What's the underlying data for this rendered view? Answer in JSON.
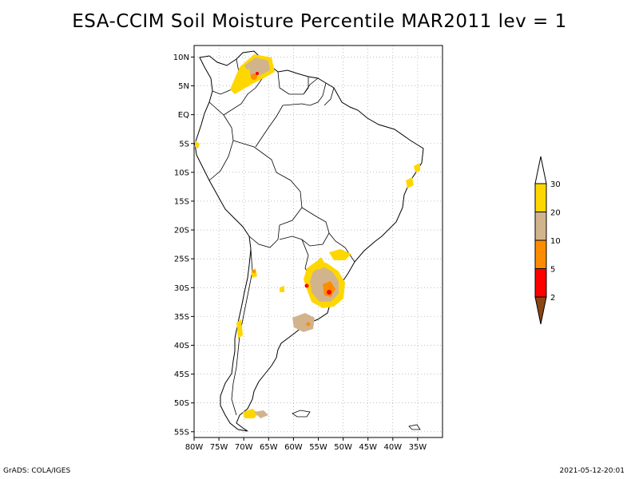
{
  "title": "ESA-CCIM Soil Moisture Percentile MAR2011 lev = 1",
  "footer": {
    "left": "GrADS: COLA/IGES",
    "right": "2021-05-12-20:01"
  },
  "map": {
    "lon_range": [
      -80,
      -30
    ],
    "lat_range": [
      -56,
      12
    ],
    "lat_ticks": [
      {
        "value": 10,
        "label": "10N"
      },
      {
        "value": 5,
        "label": "5N"
      },
      {
        "value": 0,
        "label": "EQ"
      },
      {
        "value": -5,
        "label": "5S"
      },
      {
        "value": -10,
        "label": "10S"
      },
      {
        "value": -15,
        "label": "15S"
      },
      {
        "value": -20,
        "label": "20S"
      },
      {
        "value": -25,
        "label": "25S"
      },
      {
        "value": -30,
        "label": "30S"
      },
      {
        "value": -35,
        "label": "35S"
      },
      {
        "value": -40,
        "label": "40S"
      },
      {
        "value": -45,
        "label": "45S"
      },
      {
        "value": -50,
        "label": "50S"
      },
      {
        "value": -55,
        "label": "55S"
      }
    ],
    "lon_ticks": [
      {
        "value": -80,
        "label": "80W"
      },
      {
        "value": -75,
        "label": "75W"
      },
      {
        "value": -70,
        "label": "70W"
      },
      {
        "value": -65,
        "label": "65W"
      },
      {
        "value": -60,
        "label": "60W"
      },
      {
        "value": -55,
        "label": "55W"
      },
      {
        "value": -50,
        "label": "50W"
      },
      {
        "value": -45,
        "label": "45W"
      },
      {
        "value": -40,
        "label": "40W"
      },
      {
        "value": -35,
        "label": "35W"
      }
    ],
    "grid": true
  },
  "legend": {
    "bins": [
      {
        "color": "#ffffff",
        "label": "30"
      },
      {
        "color": "#ffd700",
        "label": "20"
      },
      {
        "color": "#d2b48c",
        "label": "10"
      },
      {
        "color": "#ff8c00",
        "label": "5"
      },
      {
        "color": "#ff0000",
        "label": "2"
      },
      {
        "color": "#8b4513",
        "label": ""
      }
    ]
  }
}
